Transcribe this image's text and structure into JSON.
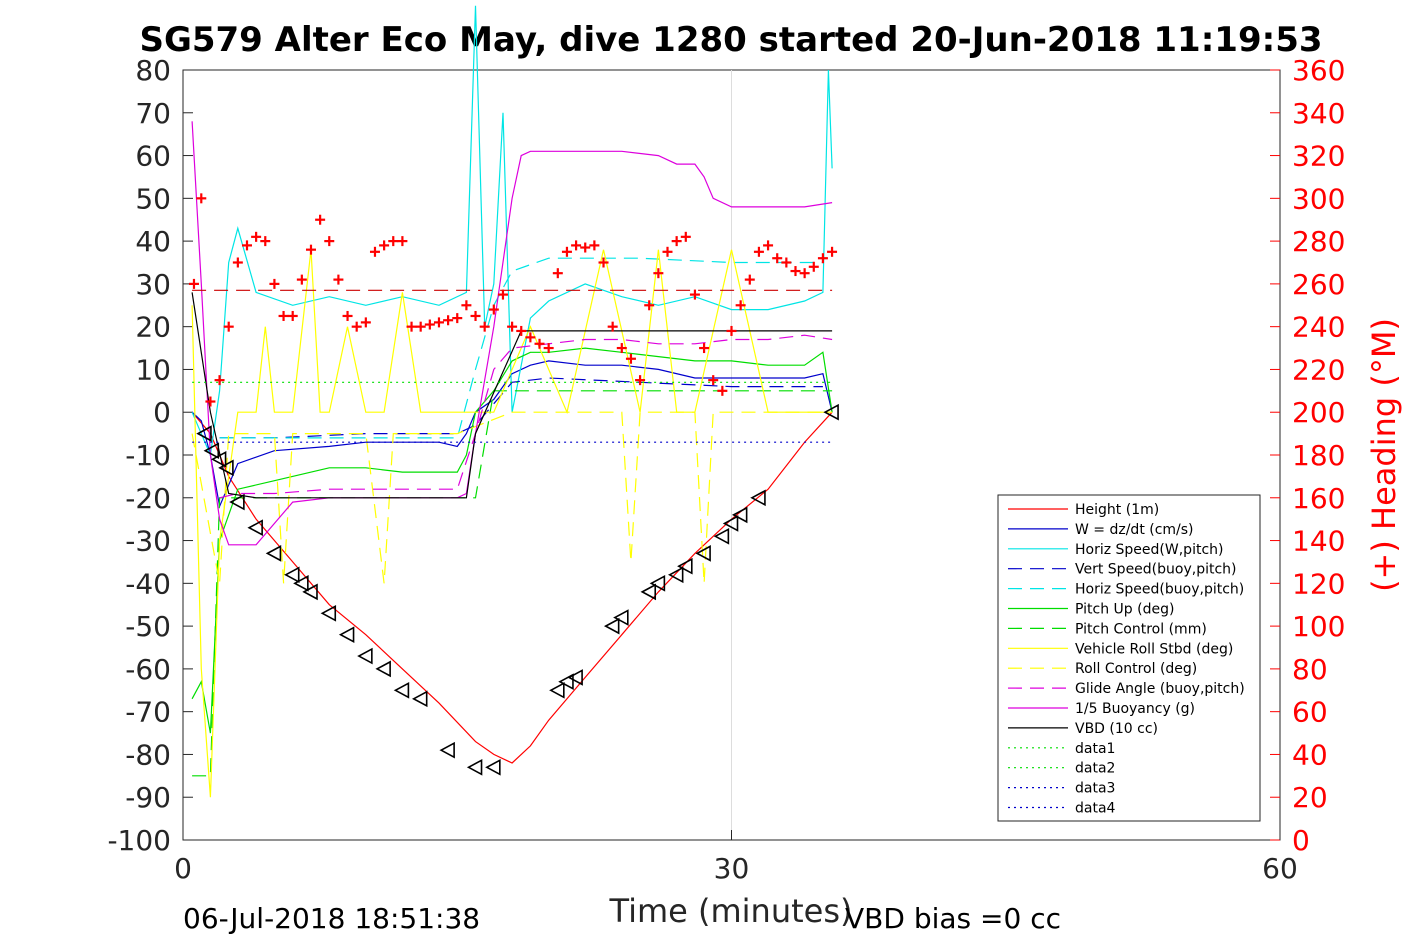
{
  "chart_data": {
    "type": "line",
    "title": "SG579 Alter Eco May, dive 1280 started 20-Jun-2018 11:19:53",
    "xlabel": "Time (minutes)",
    "ylabel": "",
    "y2label": "(+) Heading (°M)",
    "xlim": [
      0,
      60
    ],
    "ylim": [
      -100,
      80
    ],
    "y2lim": [
      0,
      360
    ],
    "xticks": [
      "0",
      "30",
      "60"
    ],
    "yticks": [
      "80",
      "70",
      "60",
      "50",
      "40",
      "30",
      "20",
      "10",
      "0",
      "-10",
      "-20",
      "-30",
      "-40",
      "-50",
      "-60",
      "-70",
      "-80",
      "-90",
      "-100"
    ],
    "y2ticks": [
      "360",
      "340",
      "320",
      "300",
      "280",
      "260",
      "240",
      "220",
      "200",
      "180",
      "160",
      "140",
      "120",
      "100",
      "80",
      "60",
      "40",
      "20",
      "0"
    ],
    "grid": "x-only",
    "legend_position": "lower-right",
    "footer_left": "06-Jul-2018 18:51:38",
    "footer_right": "VBD bias =0 cc",
    "legend": [
      {
        "label": "Height (1m)",
        "color": "#ff0000",
        "style": "solid"
      },
      {
        "label": "W = dz/dt (cm/s)",
        "color": "#0000cc",
        "style": "solid"
      },
      {
        "label": "Horiz Speed(W,pitch)",
        "color": "#00e5e5",
        "style": "solid"
      },
      {
        "label": "Vert Speed(buoy,pitch)",
        "color": "#0000cc",
        "style": "dashed"
      },
      {
        "label": "Horiz Speed(buoy,pitch)",
        "color": "#00e5e5",
        "style": "dashed"
      },
      {
        "label": "Pitch Up (deg)",
        "color": "#00dd00",
        "style": "solid"
      },
      {
        "label": "Pitch Control (mm)",
        "color": "#00dd00",
        "style": "dashed"
      },
      {
        "label": "Vehicle Roll Stbd (deg)",
        "color": "#ffff00",
        "style": "solid"
      },
      {
        "label": "Roll Control (deg)",
        "color": "#ffff00",
        "style": "dashed"
      },
      {
        "label": "Glide Angle (buoy,pitch)",
        "color": "#dd00dd",
        "style": "dashed"
      },
      {
        "label": "1/5 Buoyancy (g)",
        "color": "#dd00dd",
        "style": "solid"
      },
      {
        "label": "VBD (10 cc)",
        "color": "#000000",
        "style": "solid"
      },
      {
        "label": "data1",
        "color": "#00dd00",
        "style": "dotted"
      },
      {
        "label": "data2",
        "color": "#00dd00",
        "style": "dotted"
      },
      {
        "label": "data3",
        "color": "#0000cc",
        "style": "dotted"
      },
      {
        "label": "data4",
        "color": "#0000cc",
        "style": "dotted"
      }
    ],
    "series": [
      {
        "name": "Height (1m)",
        "color": "#ff0000",
        "x": [
          0.5,
          1.5,
          2.5,
          4,
          6,
          8,
          10,
          12,
          14,
          16,
          17,
          18,
          19,
          20,
          22,
          24,
          26,
          28,
          30,
          32,
          34,
          35.5
        ],
        "y": [
          0,
          -5,
          -15,
          -25,
          -35,
          -45,
          -52,
          -60,
          -68,
          -77,
          -80,
          -82,
          -78,
          -72,
          -62,
          -52,
          -42,
          -33,
          -25,
          -18,
          -7,
          0
        ]
      },
      {
        "name": "W = dz/dt (cm/s)",
        "color": "#0000cc",
        "x": [
          0.5,
          1,
          1.5,
          2,
          3,
          5,
          8,
          10,
          12,
          14,
          15,
          15.5,
          16,
          17,
          18,
          19,
          20,
          22,
          24,
          26,
          28,
          30,
          32,
          34,
          35,
          35.5
        ],
        "y": [
          0,
          -2,
          -10,
          -22,
          -12,
          -9,
          -8,
          -7,
          -7,
          -7,
          -8,
          -5,
          0,
          3,
          9,
          11,
          12,
          11,
          11,
          10,
          8,
          8,
          8,
          8,
          9,
          0
        ]
      },
      {
        "name": "Horiz Speed(W,pitch)",
        "color": "#00e5e5",
        "x": [
          0.5,
          1.5,
          2,
          2.5,
          3,
          4,
          6,
          8,
          10,
          12,
          14,
          15.5,
          16,
          16.5,
          17,
          17.5,
          18,
          19,
          20,
          22,
          24,
          26,
          28,
          30,
          32,
          34,
          35,
          35.3,
          35.5
        ],
        "y": [
          0,
          -10,
          5,
          35,
          43,
          28,
          25,
          27,
          25,
          27,
          25,
          28,
          95,
          20,
          30,
          70,
          0,
          22,
          26,
          30,
          27,
          25,
          27,
          24,
          24,
          26,
          28,
          80,
          57
        ]
      },
      {
        "name": "Vert Speed(buoy,pitch)",
        "color": "#0000cc",
        "x": [
          2,
          5,
          10,
          15,
          16,
          17,
          18,
          20,
          25,
          30,
          35
        ],
        "y": [
          -6,
          -6,
          -5,
          -5,
          -3,
          2,
          7,
          8,
          7,
          6,
          6
        ]
      },
      {
        "name": "Horiz Speed(buoy,pitch)",
        "color": "#00e5e5",
        "x": [
          2,
          5,
          10,
          15,
          16,
          17,
          18,
          20,
          25,
          30,
          35
        ],
        "y": [
          -6,
          -6,
          -6,
          -6,
          10,
          25,
          33,
          36,
          36,
          35,
          35
        ]
      },
      {
        "name": "Pitch Up (deg)",
        "color": "#00dd00",
        "x": [
          0.5,
          1,
          1.5,
          2,
          3,
          5,
          8,
          10,
          12,
          15,
          15.5,
          16,
          17,
          18,
          19,
          20,
          22,
          24,
          26,
          28,
          30,
          32,
          34,
          35,
          35.5
        ],
        "y": [
          -67,
          -63,
          -75,
          -30,
          -18,
          -16,
          -13,
          -13,
          -14,
          -14,
          -10,
          0,
          5,
          12,
          14,
          14,
          15,
          14,
          13,
          12,
          12,
          11,
          11,
          14,
          0
        ]
      },
      {
        "name": "Pitch Control (mm)",
        "color": "#00dd00",
        "x": [
          0.5,
          1.5,
          2,
          16,
          17,
          18,
          35.5
        ],
        "y": [
          -85,
          -85,
          -20,
          -20,
          5,
          5,
          5
        ]
      },
      {
        "name": "Vehicle Roll Stbd (deg)",
        "color": "#ffff00",
        "x": [
          0.5,
          1,
          1.5,
          2,
          3,
          4,
          4.5,
          5,
          6,
          7,
          7.5,
          8,
          9,
          10,
          11,
          12,
          13,
          14,
          15,
          17,
          19,
          21,
          23,
          25,
          26,
          27,
          28,
          30,
          32,
          34,
          35.5
        ],
        "y": [
          25,
          -60,
          -90,
          -30,
          0,
          0,
          20,
          0,
          0,
          38,
          0,
          0,
          20,
          0,
          0,
          28,
          0,
          0,
          0,
          0,
          20,
          0,
          38,
          0,
          38,
          0,
          0,
          38,
          0,
          0,
          0
        ]
      },
      {
        "name": "Roll Control (deg)",
        "color": "#ffff00",
        "x": [
          0.5,
          2,
          2.5,
          3,
          5,
          5.5,
          6,
          8,
          10,
          11,
          11.5,
          12,
          15,
          18,
          21,
          24,
          24.5,
          25,
          28,
          28.5,
          29,
          35.5
        ],
        "y": [
          -5,
          -40,
          -5,
          -5,
          -5,
          -40,
          -5,
          -5,
          -5,
          -40,
          -5,
          -5,
          -5,
          0,
          0,
          0,
          -35,
          0,
          0,
          -40,
          0,
          0
        ]
      },
      {
        "name": "Glide Angle (buoy,pitch)",
        "color": "#dd00dd",
        "x": [
          2,
          3,
          5,
          8,
          10,
          12,
          14,
          15,
          16,
          17,
          18,
          20,
          22,
          24,
          26,
          28,
          30,
          32,
          34,
          35.5
        ],
        "y": [
          -20,
          -19,
          -19,
          -18,
          -18,
          -18,
          -18,
          -18,
          -5,
          10,
          15,
          16,
          17,
          17,
          16,
          16,
          17,
          17,
          18,
          17
        ]
      },
      {
        "name": "1/5 Buoyancy (g)",
        "color": "#dd00dd",
        "x": [
          0.5,
          1,
          1.5,
          2,
          2.5,
          4,
          6,
          8,
          10,
          12,
          14,
          15,
          15.5,
          16,
          17,
          18,
          18.5,
          19,
          20,
          22,
          24,
          26,
          27,
          28,
          28.5,
          29,
          30,
          32,
          34,
          35.5
        ],
        "y": [
          68,
          30,
          -10,
          -25,
          -31,
          -31,
          -21,
          -20,
          -20,
          -20,
          -20,
          -20,
          -19,
          -5,
          20,
          50,
          60,
          61,
          61,
          61,
          61,
          60,
          58,
          58,
          55,
          50,
          48,
          48,
          48,
          49
        ]
      },
      {
        "name": "VBD (10 cc)",
        "color": "#000000",
        "x": [
          0.5,
          1.5,
          2.5,
          4,
          15,
          15.5,
          16,
          18.5,
          19,
          35.5
        ],
        "y": [
          28,
          0,
          -19,
          -20,
          -20,
          -20,
          -5,
          19,
          19,
          19
        ]
      },
      {
        "name": "data1",
        "color": "#00dd00",
        "x": [
          0.5,
          35.5
        ],
        "y": [
          7,
          7
        ]
      },
      {
        "name": "data3",
        "color": "#0000cc",
        "x": [
          0.5,
          35.5
        ],
        "y": [
          -7,
          -7
        ]
      },
      {
        "name": "heading-dashed",
        "color": "#cc0000",
        "x": [
          0.5,
          35.5
        ],
        "y": [
          28.5,
          28.5
        ]
      }
    ],
    "heading_points": {
      "color": "#ff0000",
      "x": [
        0.6,
        1.0,
        1.5,
        2.0,
        2.5,
        3.0,
        3.5,
        4.0,
        4.5,
        5.0,
        5.5,
        6.0,
        6.5,
        7.0,
        7.5,
        8.0,
        8.5,
        9.0,
        9.5,
        10.0,
        10.5,
        11.0,
        11.5,
        12.0,
        12.5,
        13.0,
        13.5,
        14.0,
        14.5,
        15.0,
        15.5,
        16.0,
        16.5,
        17.0,
        17.5,
        18.0,
        18.5,
        19.0,
        19.5,
        20.0,
        20.5,
        21.0,
        21.5,
        22.0,
        22.5,
        23.0,
        23.5,
        24.0,
        24.5,
        25.0,
        25.5,
        26.0,
        26.5,
        27.0,
        27.5,
        28.0,
        28.5,
        29.0,
        29.5,
        30.0,
        30.5,
        31.0,
        31.5,
        32.0,
        32.5,
        33.0,
        33.5,
        34.0,
        34.5,
        35.0,
        35.5
      ],
      "y": [
        260,
        300,
        205,
        215,
        240,
        270,
        278,
        282,
        280,
        260,
        245,
        245,
        262,
        276,
        290,
        280,
        262,
        245,
        240,
        242,
        275,
        278,
        280,
        280,
        240,
        240,
        241,
        242,
        243,
        244,
        250,
        245,
        240,
        248,
        255,
        240,
        238,
        235,
        232,
        230,
        265,
        275,
        278,
        277,
        278,
        270,
        240,
        230,
        225,
        215,
        250,
        265,
        275,
        280,
        282,
        255,
        230,
        215,
        210,
        238,
        250,
        262,
        275,
        278,
        272,
        270,
        266,
        265,
        268,
        272,
        275
      ]
    },
    "depth_markers": {
      "color": "#000000",
      "x": [
        1.2,
        1.6,
        2.0,
        2.4,
        3.0,
        4.0,
        5.0,
        6.0,
        6.5,
        7.0,
        8.0,
        9.0,
        10.0,
        11.0,
        12.0,
        13.0,
        14.5,
        16.0,
        17.0,
        20.5,
        21.0,
        21.5,
        23.5,
        24.0,
        25.5,
        26.0,
        27.0,
        27.5,
        28.5,
        29.5,
        30.0,
        30.5,
        31.5,
        35.5
      ],
      "y": [
        -5,
        -9,
        -11,
        -13,
        -21,
        -27,
        -33,
        -38,
        -40,
        -42,
        -47,
        -52,
        -57,
        -60,
        -65,
        -67,
        -79,
        -83,
        -83,
        -65,
        -63,
        -62,
        -50,
        -48,
        -42,
        -40,
        -38,
        -36,
        -33,
        -29,
        -26,
        -24,
        -20,
        0
      ]
    }
  }
}
